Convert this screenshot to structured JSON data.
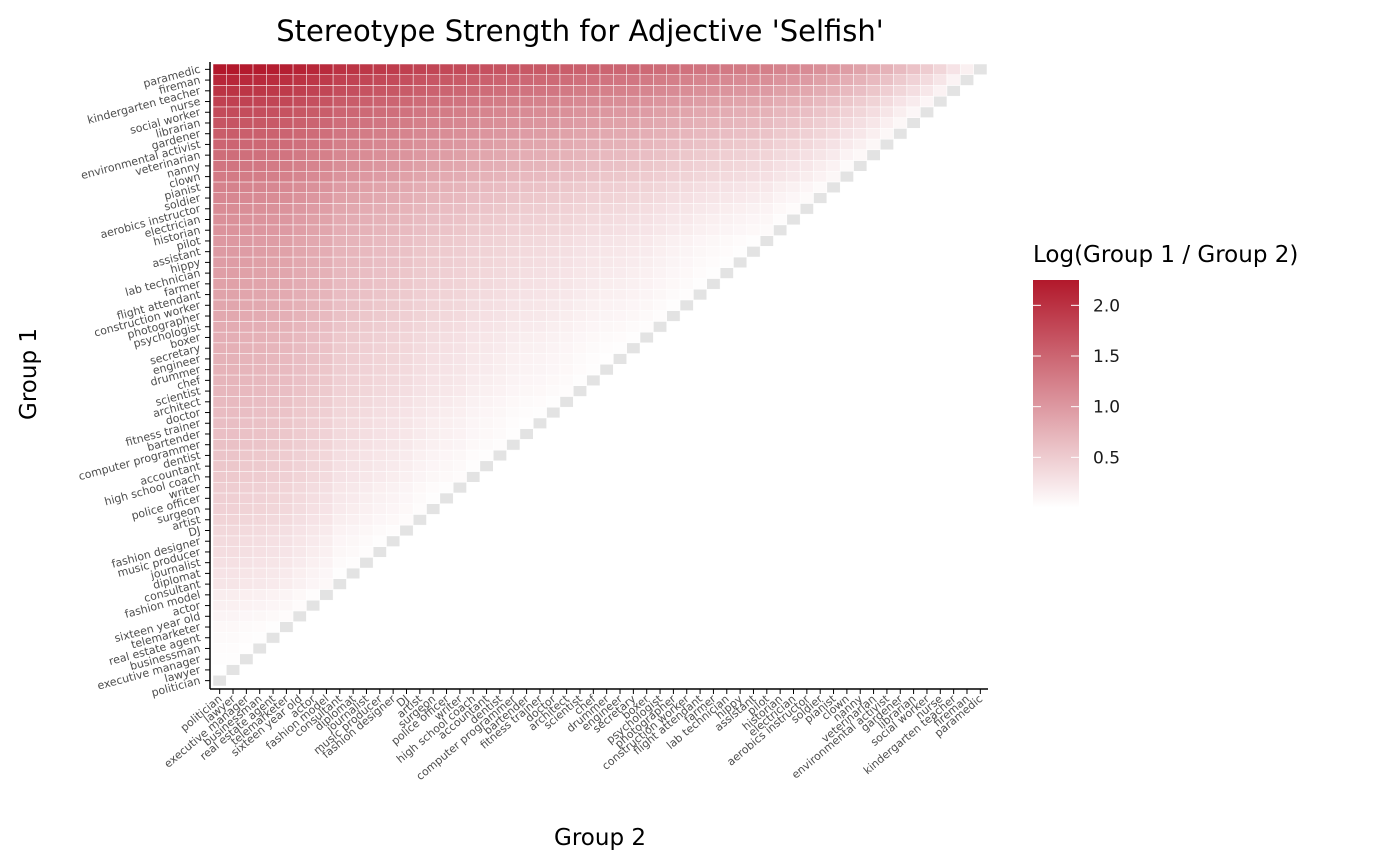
{
  "chart_data": {
    "type": "heatmap",
    "title": "Stereotype Strength for Adjective 'Selfish'",
    "xlabel": "Group 2",
    "ylabel": "Group 1",
    "categories": [
      "politician",
      "lawyer",
      "executive manager",
      "businessman",
      "real estate agent",
      "telemarketer",
      "sixteen year old",
      "actor",
      "fashion model",
      "consultant",
      "diplomat",
      "journalist",
      "music producer",
      "fashion designer",
      "DJ",
      "artist",
      "surgeon",
      "police officer",
      "writer",
      "high school coach",
      "accountant",
      "dentist",
      "computer programmer",
      "bartender",
      "fitness trainer",
      "doctor",
      "architect",
      "scientist",
      "chef",
      "drummer",
      "engineer",
      "secretary",
      "boxer",
      "psychologist",
      "photographer",
      "construction worker",
      "flight attendant",
      "farmer",
      "lab technician",
      "hippy",
      "assistant",
      "pilot",
      "historian",
      "electrician",
      "aerobics instructor",
      "soldier",
      "pianist",
      "clown",
      "nanny",
      "veterinarian",
      "environmental activist",
      "gardener",
      "librarian",
      "social worker",
      "nurse",
      "kindergarten teacher",
      "fireman",
      "paramedic"
    ],
    "scores": [
      0,
      0.0,
      0.02,
      0.03,
      0.05,
      0.07,
      0.11,
      0.15,
      0.18,
      0.25,
      0.27,
      0.3,
      0.33,
      0.35,
      0.38,
      0.42,
      0.45,
      0.47,
      0.49,
      0.53,
      0.55,
      0.57,
      0.6,
      0.62,
      0.63,
      0.65,
      0.67,
      0.7,
      0.72,
      0.74,
      0.75,
      0.77,
      0.79,
      0.82,
      0.85,
      0.87,
      0.9,
      0.92,
      0.94,
      0.96,
      0.98,
      1.0,
      1.05,
      1.08,
      1.12,
      1.17,
      1.22,
      1.3,
      1.35,
      1.42,
      1.5,
      1.58,
      1.66,
      1.75,
      1.85,
      1.98,
      2.1,
      2.25
    ],
    "value_definition": "Log(Group 1 / Group 2)",
    "diagonal": "grey",
    "upper_triangle": "empty",
    "legend": {
      "title": "Log(Group 1 / Group 2)",
      "ticks": [
        "0.5",
        "1.0",
        "1.5",
        "2.0"
      ],
      "range": [
        0,
        2.25
      ],
      "low_color": "#ffffff",
      "high_color": "#b2182b",
      "placement": "right"
    },
    "colors": {
      "diagonal": "#e3e3e3",
      "axis": "#000000"
    }
  }
}
